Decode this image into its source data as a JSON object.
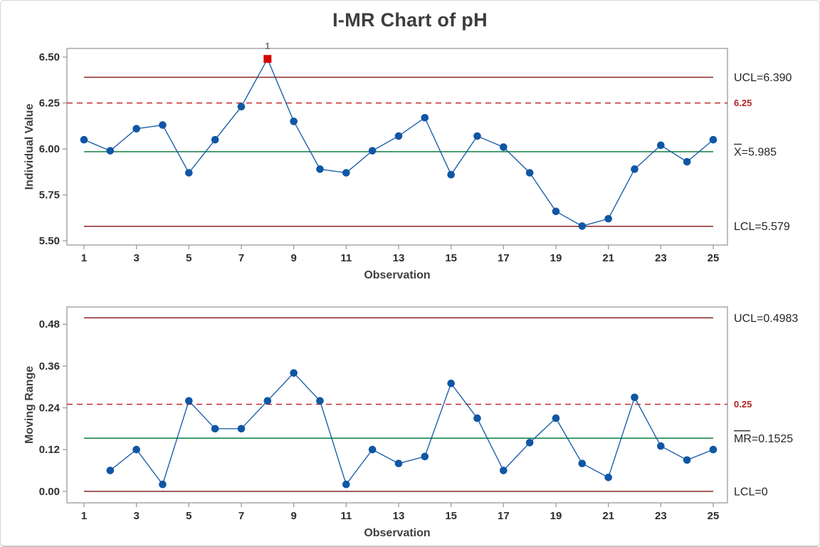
{
  "title": "I-MR Chart of pH",
  "colors": {
    "series": "#0f56a4",
    "center_line": "#0d7e3f",
    "limit_line": "#8b2423",
    "spec_line": "#c22b2b",
    "spec_label": "#b22424",
    "ooc_point": "#d40000",
    "ooc_label": "#757575",
    "plot_border": "#9a9a9a",
    "tick_text": "#2e2e2e",
    "axis_title_text": "#3f3f3f",
    "annotation_text": "#262626"
  },
  "chart_data": [
    {
      "type": "line",
      "name": "individuals",
      "ylabel": "Individual Value",
      "xlabel": "Observation",
      "x": [
        1,
        2,
        3,
        4,
        5,
        6,
        7,
        8,
        9,
        10,
        11,
        12,
        13,
        14,
        15,
        16,
        17,
        18,
        19,
        20,
        21,
        22,
        23,
        24,
        25
      ],
      "values": [
        6.05,
        5.99,
        6.11,
        6.13,
        5.87,
        6.05,
        6.23,
        6.49,
        6.15,
        5.89,
        5.87,
        5.99,
        6.07,
        6.17,
        5.86,
        6.07,
        6.01,
        5.87,
        5.66,
        5.58,
        5.62,
        5.89,
        6.02,
        5.93,
        6.05
      ],
      "center": 5.985,
      "ucl": 6.39,
      "lcl": 5.579,
      "spec": 6.25,
      "ylim": [
        5.477,
        6.547
      ],
      "ytick_values": [
        6.5,
        6.25,
        6.0,
        5.75,
        5.5
      ],
      "ytick_labels": [
        "6.50",
        "6.25",
        "6.00",
        "5.75",
        "5.50"
      ],
      "xticks": [
        1,
        3,
        5,
        7,
        9,
        11,
        13,
        15,
        17,
        19,
        21,
        23,
        25
      ],
      "labels": {
        "ucl": "UCL=6.390",
        "center_prefix": "X",
        "center_suffix": "=5.985",
        "lcl": "LCL=5.579",
        "spec": "6.25"
      },
      "out_of_control": {
        "x": 8,
        "label": "1"
      },
      "legend_position": "right-annotations",
      "grid": false
    },
    {
      "type": "line",
      "name": "moving-range",
      "ylabel": "Moving Range",
      "xlabel": "Observation",
      "x": [
        2,
        3,
        4,
        5,
        6,
        7,
        8,
        9,
        10,
        11,
        12,
        13,
        14,
        15,
        16,
        17,
        18,
        19,
        20,
        21,
        22,
        23,
        24,
        25
      ],
      "values": [
        0.06,
        0.12,
        0.02,
        0.26,
        0.18,
        0.18,
        0.26,
        0.34,
        0.26,
        0.02,
        0.12,
        0.08,
        0.1,
        0.31,
        0.21,
        0.06,
        0.14,
        0.21,
        0.08,
        0.04,
        0.27,
        0.13,
        0.09,
        0.12
      ],
      "center": 0.1525,
      "ucl": 0.4983,
      "lcl": 0,
      "spec": 0.25,
      "ylim": [
        -0.033,
        0.5295
      ],
      "ytick_values": [
        0.48,
        0.36,
        0.24,
        0.12,
        0.0
      ],
      "ytick_labels": [
        "0.48",
        "0.36",
        "0.24",
        "0.12",
        "0.00"
      ],
      "xticks": [
        1,
        3,
        5,
        7,
        9,
        11,
        13,
        15,
        17,
        19,
        21,
        23,
        25
      ],
      "labels": {
        "ucl": "UCL=0.4983",
        "center_prefix": "MR",
        "center_suffix": "=0.1525",
        "lcl": "LCL=0",
        "spec": "0.25"
      },
      "out_of_control": null,
      "legend_position": "right-annotations",
      "grid": false
    }
  ]
}
